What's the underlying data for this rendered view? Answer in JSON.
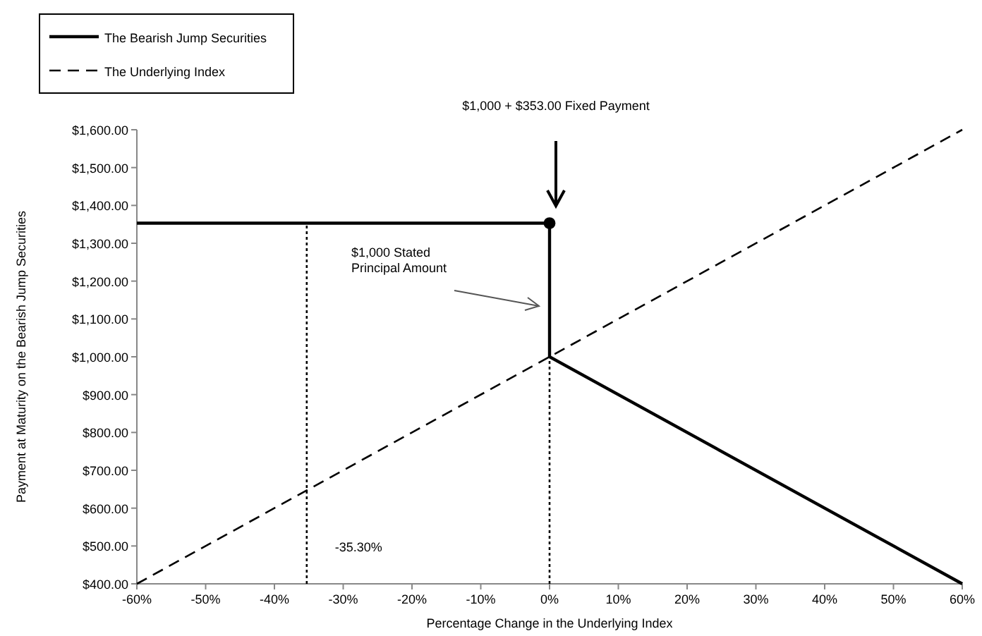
{
  "chart_data": {
    "type": "line",
    "xlabel": "Percentage Change in the Underlying Index",
    "ylabel": "Payment at Maturity on the Bearish Jump Securities",
    "xlim": [
      -60,
      60
    ],
    "ylim": [
      400,
      1600
    ],
    "xticks": [
      {
        "value": -60,
        "label": "-60%"
      },
      {
        "value": -50,
        "label": "-50%"
      },
      {
        "value": -40,
        "label": "-40%"
      },
      {
        "value": -30,
        "label": "-30%"
      },
      {
        "value": -20,
        "label": "-20%"
      },
      {
        "value": -10,
        "label": "-10%"
      },
      {
        "value": 0,
        "label": "0%"
      },
      {
        "value": 10,
        "label": "10%"
      },
      {
        "value": 20,
        "label": "20%"
      },
      {
        "value": 30,
        "label": "30%"
      },
      {
        "value": 40,
        "label": "40%"
      },
      {
        "value": 50,
        "label": "50%"
      },
      {
        "value": 60,
        "label": "60%"
      }
    ],
    "yticks": [
      {
        "value": 400,
        "label": "$400.00"
      },
      {
        "value": 500,
        "label": "$500.00"
      },
      {
        "value": 600,
        "label": "$600.00"
      },
      {
        "value": 700,
        "label": "$700.00"
      },
      {
        "value": 800,
        "label": "$800.00"
      },
      {
        "value": 900,
        "label": "$900.00"
      },
      {
        "value": 1000,
        "label": "$1,000.00"
      },
      {
        "value": 1100,
        "label": "$1,100.00"
      },
      {
        "value": 1200,
        "label": "$1,200.00"
      },
      {
        "value": 1300,
        "label": "$1,300.00"
      },
      {
        "value": 1400,
        "label": "$1,400.00"
      },
      {
        "value": 1500,
        "label": "$1,500.00"
      },
      {
        "value": 1600,
        "label": "$1,600.00"
      }
    ],
    "legend": "top left",
    "grid": false,
    "series": [
      {
        "name": "The Bearish Jump Securities",
        "color": "#000000",
        "x": [
          -60,
          0,
          0,
          60
        ],
        "values": [
          1353,
          1353,
          1000,
          400
        ],
        "line_style": "solid",
        "marker": "none"
      },
      {
        "name": "The Underlying Index",
        "color": "#000000",
        "x": [
          -60,
          60
        ],
        "values": [
          400,
          1600
        ],
        "line_style": "dashed",
        "marker": "none"
      },
      {
        "color": "#000000",
        "x": [
          -35.3,
          -35.3
        ],
        "values": [
          400,
          1353
        ],
        "line_style": "dotted",
        "marker": "none"
      },
      {
        "color": "#000000",
        "x": [
          0,
          0
        ],
        "values": [
          400,
          1000
        ],
        "line_style": "dotted",
        "marker": "none"
      },
      {
        "type": "scatter",
        "color": "#000000",
        "x": [
          0
        ],
        "values": [
          1353
        ],
        "marker": "circle"
      }
    ],
    "annotations": [
      "$1,000 + $353.00 Fixed Payment",
      "$1,000 Stated\nPrincipal Amount",
      {
        "text": "-35.30%",
        "x": -35.3,
        "y": 500
      }
    ]
  }
}
